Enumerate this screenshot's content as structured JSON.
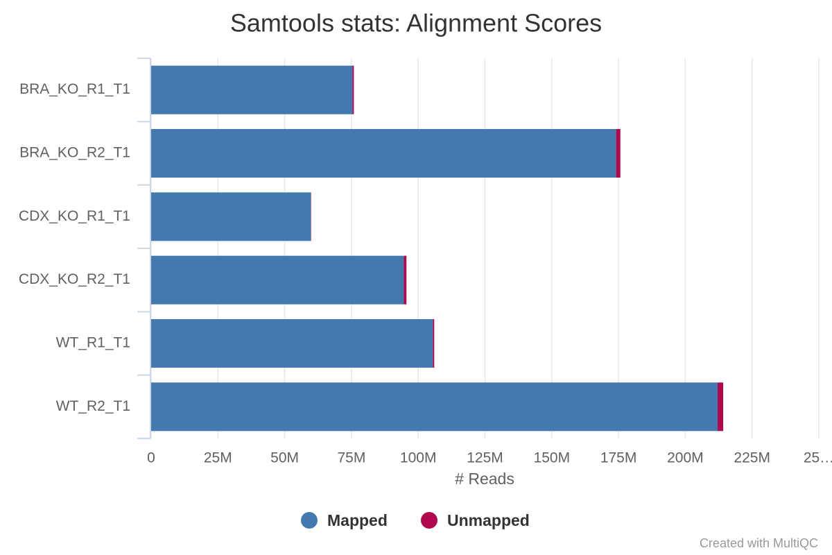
{
  "chart_data": {
    "type": "bar",
    "orientation": "horizontal",
    "stacked": true,
    "title": "Samtools stats: Alignment Scores",
    "x_label": "# Reads",
    "categories": [
      "BRA_KO_R1_T1",
      "BRA_KO_R2_T1",
      "CDX_KO_R1_T1",
      "CDX_KO_R2_T1",
      "WT_R1_T1",
      "WT_R2_T1"
    ],
    "series": [
      {
        "name": "Mapped",
        "color": "#4479b0",
        "values": [
          75400000,
          174100000,
          59800000,
          94600000,
          105500000,
          212100000
        ]
      },
      {
        "name": "Unmapped",
        "color": "#b0084e",
        "values": [
          500000,
          1600000,
          100000,
          1000000,
          500000,
          2100000
        ]
      }
    ],
    "xlim": [
      0,
      250000000
    ],
    "xticks": [
      0,
      {
        "value": 25000000,
        "label": "25M"
      },
      {
        "value": 50000000,
        "label": "50M"
      },
      {
        "value": 75000000,
        "label": "75M"
      },
      {
        "value": 100000000,
        "label": "100M"
      },
      {
        "value": 125000000,
        "label": "125M"
      },
      {
        "value": 150000000,
        "label": "150M"
      },
      {
        "value": 175000000,
        "label": "175M"
      },
      {
        "value": 200000000,
        "label": "200M"
      },
      {
        "value": 225000000,
        "label": "225M"
      },
      {
        "value": 250000000,
        "label": "25…"
      }
    ],
    "grid": true,
    "legend": "bottom",
    "credit": "Created with MultiQC"
  }
}
